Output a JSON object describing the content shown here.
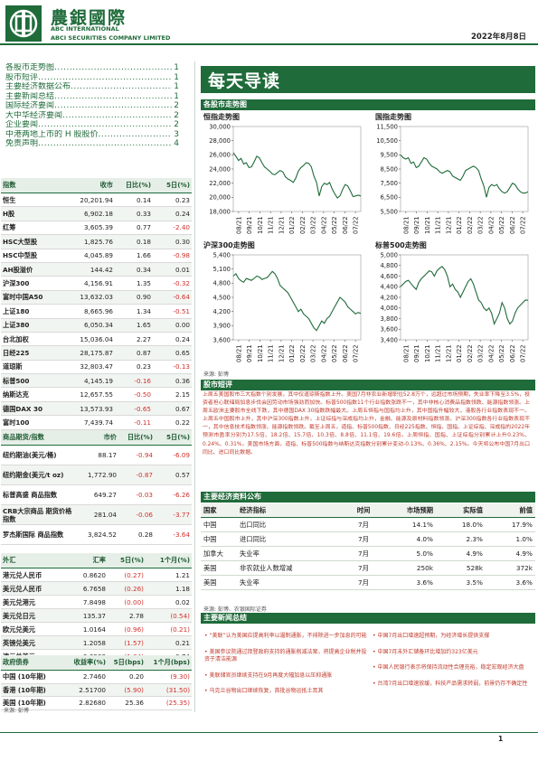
{
  "header": {
    "brand_cn": "農銀國際",
    "brand_en1": "ABC INTERNATIONAL",
    "brand_en2": "ABCI SECURITIES COMPANY LIMITED",
    "date": "2022年8月8日"
  },
  "toc": [
    {
      "label": "各股市走势图",
      "page": "1"
    },
    {
      "label": "股市短评",
      "page": "1"
    },
    {
      "label": "主要经济数据公布",
      "page": "1"
    },
    {
      "label": "主要新闻总结",
      "page": "1"
    },
    {
      "label": "国际经济要闻",
      "page": "2"
    },
    {
      "label": "大中华经济要闻",
      "page": "2"
    },
    {
      "label": "企业要闻",
      "page": "2"
    },
    {
      "label": "中港两地上市的 H 股股价",
      "page": "3"
    },
    {
      "label": "免责声明",
      "page": "4"
    }
  ],
  "indices": {
    "headers": [
      "指数",
      "收市",
      "日比(%)",
      "5日(%)"
    ],
    "rows": [
      [
        "恒生",
        "20,201.94",
        "0.14",
        "0.23"
      ],
      [
        "H股",
        "6,902.18",
        "0.33",
        "0.24"
      ],
      [
        "红筹",
        "3,605.39",
        "0.77",
        "-2.40"
      ],
      [
        "HSC大型股",
        "1,825.76",
        "0.18",
        "0.30"
      ],
      [
        "HSC中型股",
        "4,045.89",
        "1.66",
        "-0.98"
      ],
      [
        "AH股溢价",
        "144.42",
        "0.34",
        "0.01"
      ],
      [
        "沪深300",
        "4,156.91",
        "1.35",
        "-0.32"
      ],
      [
        "富时中国A50",
        "13,632.03",
        "0.90",
        "-0.64"
      ],
      [
        "上证180",
        "8,665.96",
        "1.34",
        "-0.51"
      ],
      [
        "上证380",
        "6,050.34",
        "1.65",
        "0.00"
      ],
      [
        "台北加权",
        "15,036.04",
        "2.27",
        "0.24"
      ],
      [
        "日经225",
        "28,175.87",
        "0.87",
        "0.65"
      ],
      [
        "道琼斯",
        "32,803.47",
        "0.23",
        "-0.13"
      ],
      [
        "标普500",
        "4,145.19",
        "-0.16",
        "0.36"
      ],
      [
        "纳斯达克",
        "12,657.55",
        "-0.50",
        "2.15"
      ],
      [
        "德国DAX 30",
        "13,573.93",
        "-0.65",
        "0.67"
      ],
      [
        "富时100",
        "7,439.74",
        "-0.11",
        "0.22"
      ],
      [
        "法国CAC 40",
        "6,472.35",
        "-0.63",
        "0.37"
      ]
    ]
  },
  "commodities": {
    "headers": [
      "商品期货/指数",
      "市价",
      "日比(%)",
      "5日(%)"
    ],
    "rows": [
      [
        "纽约期油(美元/桶)",
        "88.17",
        "-0.94",
        "-6.09"
      ],
      [
        "纽约期金(美元/t oz)",
        "1,772.90",
        "-0.87",
        "0.57"
      ],
      [
        "标普高盛 商品指数",
        "649.27",
        "-0.03",
        "-6.26"
      ],
      [
        "CRB大宗商品 期货价格指数",
        "281.04",
        "-0.06",
        "-3.77"
      ],
      [
        "罗杰斯国际 商品指数",
        "3,824.52",
        "0.28",
        "-3.64"
      ]
    ]
  },
  "fx": {
    "headers": [
      "外汇",
      "汇率",
      "5日(%)",
      "1个月(%)"
    ],
    "rows": [
      [
        "港元兑人民币",
        "0.8620",
        "(0.27)",
        "1.21"
      ],
      [
        "美元兑人民币",
        "6.7658",
        "(0.26)",
        "1.18"
      ],
      [
        "美元兑港元",
        "7.8498",
        "(0.00)",
        "0.02"
      ],
      [
        "美元兑日元",
        "135.37",
        "2.78",
        "(0.54)"
      ],
      [
        "欧元兑美元",
        "1.0164",
        "(0.96)",
        "(0.21)"
      ],
      [
        "英镑兑美元",
        "1.2058",
        "(1.57)",
        "0.21"
      ],
      [
        "澳元兑美元",
        "0.6908",
        "(1.64)",
        "0.74"
      ]
    ]
  },
  "bonds": {
    "headers": [
      "政府债券",
      "收益率(%)",
      "5日(bps)",
      "1个月(bps)"
    ],
    "rows": [
      [
        "中国 (10年期)",
        "2.7460",
        "0.20",
        "(9.30)"
      ],
      [
        "香港 (10年期)",
        "2.51700",
        "(5.90)",
        "(31.50)"
      ],
      [
        "美国 (10年期)",
        "2.82680",
        "25.36",
        "(25.35)"
      ]
    ],
    "source": "来源: 彭博"
  },
  "main": {
    "title": "每天导读",
    "sec_charts": "各股市走势图",
    "sec_comment": "股市短评",
    "sec_econ": "主要经济资料公布",
    "sec_news": "主要新闻总结",
    "chart_source": "来源: 彭博",
    "econ_source": "来源: 彭博、农银国际证券",
    "comment": "上周五美国股市三大指数个别发展，其中仅道琼斯指数上升。美国7月非农业新增职位52.8万个，远超过市场预期，失业率下降至3.5%，投资者担心联储局加息步伐会因劳动市场强劲而加快。标普500指数11个行业指数涨跌不一，其中非核心消费品指数领跌、能源指数领涨。上周五欧洲主要股市全线下跌，其中德国DAX 30指数跌幅最大。上周五恒指与国指均上升，其中国指升幅较大，港股各行业指数表现不一。上周五中国股市上升，其中沪深300指数上升，上证综指与深成指均上升，金融、能源及原材料指数领涨。沪深300指数各行业指数表现不一，其中信息技术指数领涨、能源指数领跌。截至上周五，道指、标普500指数、日经225指数、恒指、国指、上证综指、深成指的2022年预测市盈率分别为17.5倍、18.2倍、15.7倍、10.3倍、8.8倍、11.1倍、19.6倍。上周恒指、国指、上证综指分别累计上升0.23%、0.24%、0.31%，美国市场方面，道指、标普500指数与纳斯达克指数分别累计变动-0.13%、0.36%、2.15%。今天将公布中国7月出口同比、进口同比数据。"
  },
  "econ": {
    "headers": [
      "国家",
      "经济指标",
      "时间",
      "市场预期",
      "实际值",
      "前值"
    ],
    "rows": [
      [
        "中国",
        "出口同比",
        "7月",
        "14.1%",
        "18.0%",
        "17.9%"
      ],
      [
        "中国",
        "进口同比",
        "7月",
        "4.0%",
        "2.3%",
        "1.0%"
      ],
      [
        "加拿大",
        "失业率",
        "7月",
        "5.0%",
        "4.9%",
        "4.9%"
      ],
      [
        "美国",
        "非农就业人数增减",
        "7月",
        "250k",
        "528k",
        "372k"
      ],
      [
        "美国",
        "失业率",
        "7月",
        "3.6%",
        "3.5%",
        "3.6%"
      ]
    ]
  },
  "news": {
    "left": [
      "“美联”认为美国应提高利率以遏制通胀，不排除进一步加息的可能",
      "美国参议院通过拜登政府支持的通胀削减法案，将提高企业税并投资于清洁能源",
      "美联储官员继续支持在9月再度大幅加息以压抑通胀",
      "乌克兰谷物出口继续恢复，首批谷物运抵土耳其"
    ],
    "right": [
      "中国7月出口增速超预期，为经济增长提供支撑",
      "中国7月末外汇储备环比增加约323亿美元",
      "中国人民银行表示将保持流动性合理充裕，稳定宏观经济大盘",
      "台湾7月出口增速放缓，科技产品需求转弱，前景仍存不确定性"
    ]
  },
  "charts": [
    {
      "title": "恒指走势图",
      "ymin": 18000,
      "ymax": 30000,
      "ticks": [
        18000,
        20000,
        22000,
        24000,
        26000,
        28000,
        30000
      ],
      "labels": [
        "08/21",
        "09/21",
        "10/21",
        "11/21",
        "12/21",
        "01/22",
        "02/22",
        "03/22",
        "04/22",
        "05/22",
        "06/22",
        "07/22"
      ],
      "color": "#1f6b3a",
      "values": [
        26300,
        25800,
        25200,
        25500,
        24700,
        24900,
        24200,
        24300,
        25000,
        25800,
        25600,
        24900,
        24300,
        24000,
        23700,
        23300,
        23200,
        23500,
        23800,
        23600,
        22900,
        22600,
        22400,
        22100,
        22700,
        23700,
        24200,
        24500,
        24900,
        24800,
        24300,
        23000,
        22100,
        20200,
        21500,
        22000,
        21800,
        22100,
        21200,
        20500,
        19900,
        20200,
        21100,
        21800,
        21600,
        20900,
        20100,
        20200,
        20300,
        20200
      ]
    },
    {
      "title": "国指走势图",
      "ymin": 5500,
      "ymax": 11500,
      "ticks": [
        5500,
        6500,
        7500,
        8500,
        9500,
        10500,
        11500
      ],
      "labels": [
        "08/21",
        "09/21",
        "10/21",
        "11/21",
        "12/21",
        "01/22",
        "02/22",
        "03/22",
        "04/22",
        "05/22",
        "06/22",
        "07/22"
      ],
      "color": "#1f6b3a",
      "values": [
        9500,
        9300,
        9200,
        9300,
        8900,
        9000,
        8600,
        8700,
        9000,
        9300,
        9200,
        8900,
        8700,
        8600,
        8500,
        8300,
        8200,
        8300,
        8400,
        8300,
        8000,
        7900,
        7800,
        7700,
        8000,
        8400,
        8500,
        8600,
        8700,
        8600,
        8400,
        7800,
        7300,
        6500,
        7200,
        7400,
        7300,
        7400,
        7100,
        6900,
        6800,
        6900,
        7200,
        7500,
        7400,
        7100,
        6900,
        6800,
        6800,
        6900
      ]
    },
    {
      "title": "沪深300走势图",
      "ymin": 3600,
      "ymax": 5400,
      "ticks": [
        3600,
        3900,
        4200,
        4500,
        4800,
        5100,
        5400
      ],
      "labels": [
        "08/21",
        "09/21",
        "10/21",
        "11/21",
        "12/21",
        "01/22",
        "02/22",
        "03/22",
        "04/22",
        "05/22",
        "06/22",
        "07/22"
      ],
      "color": "#1f6b3a",
      "values": [
        4950,
        5000,
        4900,
        4850,
        4820,
        4900,
        4880,
        4860,
        4900,
        4950,
        4930,
        4880,
        4900,
        4920,
        4980,
        5050,
        5000,
        4900,
        4750,
        4700,
        4650,
        4600,
        4500,
        4400,
        4300,
        4200,
        4250,
        4150,
        4100,
        4050,
        3950,
        3850,
        3800,
        3900,
        4000,
        3950,
        4050,
        4100,
        4200,
        4300,
        4400,
        4500,
        4450,
        4400,
        4300,
        4250,
        4200,
        4150,
        4180,
        4160
      ]
    },
    {
      "title": "标普500走势图",
      "ymin": 3400,
      "ymax": 5000,
      "ticks": [
        3400,
        3600,
        3800,
        4000,
        4200,
        4400,
        4600,
        4800,
        5000
      ],
      "labels": [
        "08/21",
        "09/21",
        "10/21",
        "11/21",
        "12/21",
        "01/22",
        "02/22",
        "03/22",
        "04/22",
        "05/22",
        "06/22",
        "07/22"
      ],
      "color": "#1f6b3a",
      "values": [
        4400,
        4450,
        4500,
        4520,
        4460,
        4400,
        4350,
        4480,
        4550,
        4600,
        4650,
        4700,
        4680,
        4600,
        4700,
        4750,
        4780,
        4720,
        4600,
        4400,
        4450,
        4350,
        4300,
        4200,
        4300,
        4400,
        4500,
        4550,
        4450,
        4300,
        4150,
        4100,
        4000,
        3950,
        4000,
        3900,
        3700,
        3800,
        3900,
        4100,
        4000,
        3800,
        3700,
        3750,
        3900,
        4000,
        4050,
        4100,
        4150,
        4145
      ]
    }
  ],
  "footer": {
    "page": "1"
  }
}
